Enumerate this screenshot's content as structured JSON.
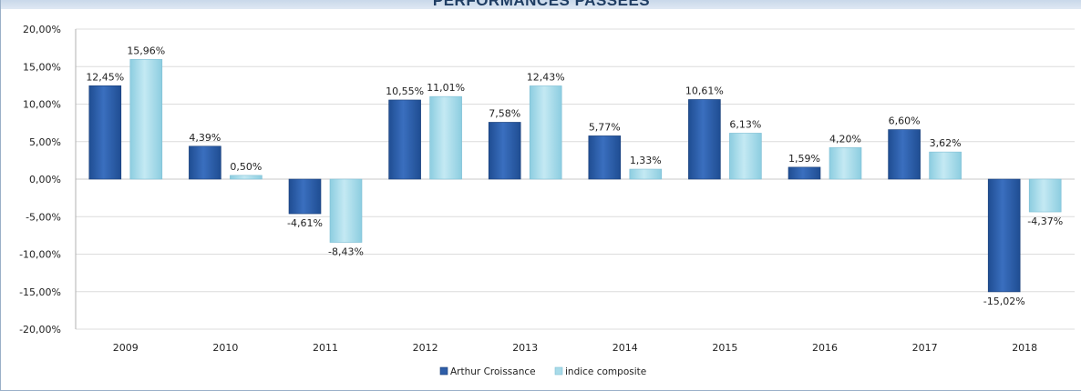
{
  "chart_data": {
    "type": "bar",
    "title": "PERFORMANCES PASSEES",
    "categories": [
      "2009",
      "2010",
      "2011",
      "2012",
      "2013",
      "2014",
      "2015",
      "2016",
      "2017",
      "2018"
    ],
    "series": [
      {
        "name": "Arthur Croissance",
        "color": "#2e5ea8",
        "values": [
          12.45,
          4.39,
          -4.61,
          10.55,
          7.58,
          5.77,
          10.61,
          1.59,
          6.6,
          -15.02
        ],
        "labels": [
          "12,45%",
          "4,39%",
          "-4,61%",
          "10,55%",
          "7,58%",
          "5,77%",
          "10,61%",
          "1,59%",
          "6,60%",
          "-15,02%"
        ]
      },
      {
        "name": "indice composite",
        "color": "#a8dbe9",
        "values": [
          15.96,
          0.5,
          -8.43,
          11.01,
          12.43,
          1.33,
          6.13,
          4.2,
          3.62,
          -4.37
        ],
        "labels": [
          "15,96%",
          "0,50%",
          "-8,43%",
          "11,01%",
          "12,43%",
          "1,33%",
          "6,13%",
          "4,20%",
          "3,62%",
          "-4,37%"
        ]
      }
    ],
    "ylim": [
      -20,
      20
    ],
    "yticks": [
      "20,00%",
      "15,00%",
      "10,00%",
      "5,00%",
      "0,00%",
      "-5,00%",
      "-10,00%",
      "-15,00%",
      "-20,00%"
    ],
    "ytick_values": [
      20,
      15,
      10,
      5,
      0,
      -5,
      -10,
      -15,
      -20
    ],
    "grid": true,
    "legend_position": "bottom"
  }
}
